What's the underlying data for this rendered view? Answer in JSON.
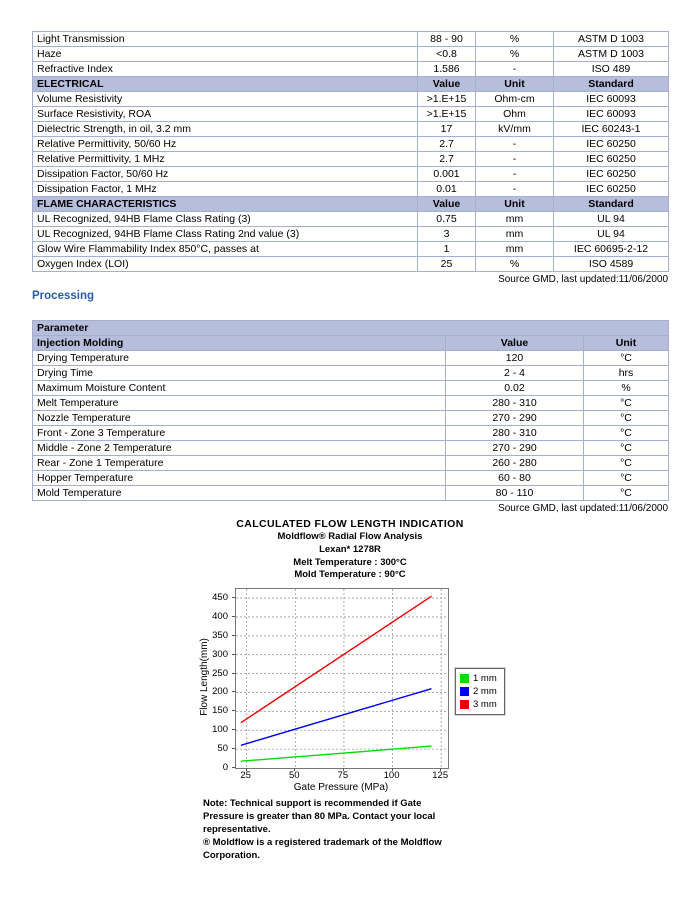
{
  "page": {
    "source_note": "Source GMD, last updated:11/06/2000",
    "processing_heading": "Processing"
  },
  "colors": {
    "table_header_bg": "#b7bedc",
    "table_border": "#a6aed0",
    "heading_blue": "#2a5caa",
    "series_green": "#00dd00",
    "series_blue": "#0000ee",
    "series_red": "#ee0000"
  },
  "properties_table": {
    "rows": [
      {
        "cells": [
          "Light Transmission",
          "88 - 90",
          "%",
          "ASTM D 1003"
        ]
      },
      {
        "cells": [
          "Haze",
          "<0.8",
          "%",
          "ASTM D 1003"
        ]
      },
      {
        "cells": [
          "Refractive Index",
          "1.586",
          "-",
          "ISO 489"
        ]
      },
      {
        "header": true,
        "cells": [
          "ELECTRICAL",
          "Value",
          "Unit",
          "Standard"
        ]
      },
      {
        "cells": [
          "Volume Resistivity",
          ">1.E+15",
          "Ohm-cm",
          "IEC 60093"
        ]
      },
      {
        "cells": [
          "Surface Resistivity, ROA",
          ">1.E+15",
          "Ohm",
          "IEC 60093"
        ]
      },
      {
        "cells": [
          "Dielectric Strength, in oil, 3.2 mm",
          "17",
          "kV/mm",
          "IEC 60243-1"
        ]
      },
      {
        "cells": [
          "Relative Permittivity, 50/60 Hz",
          "2.7",
          "-",
          "IEC 60250"
        ]
      },
      {
        "cells": [
          "Relative Permittivity, 1 MHz",
          "2.7",
          "-",
          "IEC 60250"
        ]
      },
      {
        "cells": [
          "Dissipation Factor, 50/60 Hz",
          "0.001",
          "-",
          "IEC 60250"
        ]
      },
      {
        "cells": [
          "Dissipation Factor, 1 MHz",
          "0.01",
          "-",
          "IEC 60250"
        ]
      },
      {
        "header": true,
        "cells": [
          "FLAME CHARACTERISTICS",
          "Value",
          "Unit",
          "Standard"
        ]
      },
      {
        "cells": [
          "UL Recognized, 94HB Flame Class Rating (3)",
          "0.75",
          "mm",
          "UL 94"
        ]
      },
      {
        "cells": [
          "UL Recognized, 94HB Flame Class Rating 2nd value (3)",
          "3",
          "mm",
          "UL 94"
        ]
      },
      {
        "cells": [
          "Glow Wire Flammability Index 850°C, passes at",
          "1",
          "mm",
          "IEC 60695-2-12"
        ]
      },
      {
        "cells": [
          "Oxygen Index (LOI)",
          "25",
          "%",
          "ISO 4589"
        ]
      }
    ]
  },
  "processing_table": {
    "rows": [
      {
        "header": true,
        "span": [
          3
        ],
        "cells": [
          "Parameter"
        ]
      },
      {
        "header": true,
        "cells": [
          "Injection Molding",
          "Value",
          "Unit"
        ]
      },
      {
        "cells": [
          "Drying Temperature",
          "120",
          "°C"
        ]
      },
      {
        "cells": [
          "Drying Time",
          "2 - 4",
          "hrs"
        ]
      },
      {
        "cells": [
          "Maximum Moisture Content",
          "0.02",
          "%"
        ]
      },
      {
        "cells": [
          "Melt Temperature",
          "280 - 310",
          "°C"
        ]
      },
      {
        "cells": [
          "Nozzle Temperature",
          "270 - 290",
          "°C"
        ]
      },
      {
        "cells": [
          "Front - Zone 3 Temperature",
          "280 - 310",
          "°C"
        ]
      },
      {
        "cells": [
          "Middle - Zone 2 Temperature",
          "270 - 290",
          "°C"
        ]
      },
      {
        "cells": [
          "Rear - Zone 1 Temperature",
          "260 - 280",
          "°C"
        ]
      },
      {
        "cells": [
          "Hopper Temperature",
          "60 - 80",
          "°C"
        ]
      },
      {
        "cells": [
          "Mold Temperature",
          "80 - 110",
          "°C"
        ]
      }
    ]
  },
  "chart_data": {
    "type": "line",
    "title": "CALCULATED FLOW LENGTH INDICATION",
    "subtitles": [
      "Moldflow® Radial Flow Analysis",
      "Lexan* 1278R",
      "Melt Temperature : 300°C",
      "Mold Temperature : 90°C"
    ],
    "xlabel": "Gate Pressure (MPa)",
    "ylabel": "Flow Length(mm)",
    "xlim": [
      19.5,
      128.5
    ],
    "ylim": [
      0,
      474
    ],
    "xticks": [
      25,
      50,
      75,
      100,
      125
    ],
    "yticks": [
      0,
      50,
      100,
      150,
      200,
      250,
      300,
      350,
      400,
      450
    ],
    "grid": true,
    "legend_position": "right",
    "series": [
      {
        "name": "1 mm",
        "color": "#00dd00",
        "x": [
          22,
          120
        ],
        "y": [
          18,
          58
        ]
      },
      {
        "name": "2 mm",
        "color": "#0000ee",
        "x": [
          22,
          120
        ],
        "y": [
          60,
          210
        ]
      },
      {
        "name": "3 mm",
        "color": "#ee0000",
        "x": [
          22,
          120
        ],
        "y": [
          120,
          455
        ]
      }
    ],
    "notes": [
      "Note:  Technical support is recommended if Gate",
      "Pressure is greater than 80 MPa. Contact your local",
      "representative.",
      "® Moldflow is a registered trademark of the Moldflow",
      "Corporation."
    ]
  }
}
